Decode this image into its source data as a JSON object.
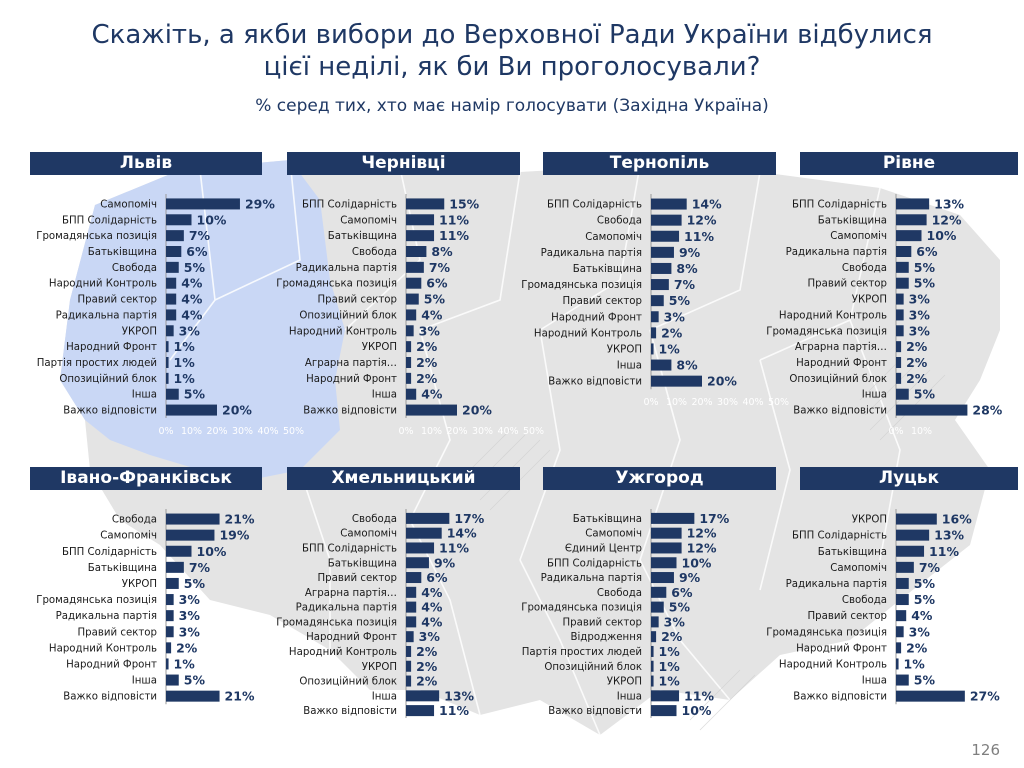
{
  "title_line1": "Скажіть, а якби вибори до Верховної Ради України відбулися",
  "title_line2": "цієї неділі, як би Ви проголосували?",
  "subtitle": "% серед тих, хто має намір голосувати (Західна Україна)",
  "page_number": "126",
  "colors": {
    "bar": "#1f3864",
    "header_bg": "#1f3864",
    "region_highlight": "#c9d7f5",
    "map": "#e4e4e4"
  },
  "chart_data": [
    {
      "type": "bar",
      "orientation": "horizontal",
      "title": "Львів",
      "categories": [
        "Самопоміч",
        "БПП Солідарність",
        "Громадянська позиція",
        "Батьківщина",
        "Свобода",
        "Народний Контроль",
        "Правий сектор",
        "Радикальна партія",
        "УКРОП",
        "Народний Фронт",
        "Партія простих людей",
        "Опозиційний блок",
        "Інша",
        "Важко відповісти"
      ],
      "values": [
        29,
        10,
        7,
        6,
        5,
        4,
        4,
        4,
        3,
        1,
        1,
        1,
        5,
        20
      ],
      "xlim": [
        0,
        50
      ],
      "xticks": [
        "0%",
        "10%",
        "20%",
        "30%",
        "40%",
        "50%"
      ]
    },
    {
      "type": "bar",
      "orientation": "horizontal",
      "title": "Чернівці",
      "categories": [
        "БПП Солідарність",
        "Самопоміч",
        "Батьківщина",
        "Свобода",
        "Радикальна партія",
        "Громадянська позиція",
        "Правий сектор",
        "Опозиційний блок",
        "Народний Контроль",
        "УКРОП",
        "Аграрна партія…",
        "Народний Фронт",
        "Інша",
        "Важко відповісти"
      ],
      "values": [
        15,
        11,
        11,
        8,
        7,
        6,
        5,
        4,
        3,
        2,
        2,
        2,
        4,
        20
      ],
      "xlim": [
        0,
        50
      ],
      "xticks": [
        "0%",
        "10%",
        "20%",
        "30%",
        "40%",
        "50%"
      ]
    },
    {
      "type": "bar",
      "orientation": "horizontal",
      "title": "Тернопіль",
      "categories": [
        "БПП Солідарність",
        "Свобода",
        "Самопоміч",
        "Радикальна партія",
        "Батьківщина",
        "Громадянська позиція",
        "Правий сектор",
        "Народний Фронт",
        "Народний Контроль",
        "УКРОП",
        "Інша",
        "Важко відповісти"
      ],
      "values": [
        14,
        12,
        11,
        9,
        8,
        7,
        5,
        3,
        2,
        1,
        8,
        20
      ],
      "xlim": [
        0,
        50
      ],
      "xticks": [
        "0%",
        "10%",
        "20%",
        "30%",
        "40%",
        "50%"
      ]
    },
    {
      "type": "bar",
      "orientation": "horizontal",
      "title": "Рівне",
      "categories": [
        "БПП Солідарність",
        "Батьківщина",
        "Самопоміч",
        "Радикальна партія",
        "Свобода",
        "Правий сектор",
        "УКРОП",
        "Народний Контроль",
        "Громадянська позиція",
        "Аграрна партія…",
        "Народний Фронт",
        "Опозиційний блок",
        "Інша",
        "Важко відповісти"
      ],
      "values": [
        13,
        12,
        10,
        6,
        5,
        5,
        3,
        3,
        3,
        2,
        2,
        2,
        5,
        28
      ],
      "xlim": [
        0,
        50
      ],
      "xticks": [
        "0%",
        "10%"
      ]
    },
    {
      "type": "bar",
      "orientation": "horizontal",
      "title": "Івано-Франківськ",
      "categories": [
        "Свобода",
        "Самопоміч",
        "БПП Солідарність",
        "Батьківщина",
        "УКРОП",
        "Громадянська позиція",
        "Радикальна партія",
        "Правий сектор",
        "Народний Контроль",
        "Народний Фронт",
        "Інша",
        "Важко відповісти"
      ],
      "values": [
        21,
        19,
        10,
        7,
        5,
        3,
        3,
        3,
        2,
        1,
        5,
        21
      ],
      "xlim": [
        0,
        50
      ],
      "xticks": []
    },
    {
      "type": "bar",
      "orientation": "horizontal",
      "title": "Хмельницький",
      "categories": [
        "Свобода",
        "Самопоміч",
        "БПП Солідарність",
        "Батьківщина",
        "Правий сектор",
        "Аграрна партія…",
        "Радикальна партія",
        "Громадянська позиція",
        "Народний Фронт",
        "Народний Контроль",
        "УКРОП",
        "Опозиційний блок",
        "Інша",
        "Важко відповісти"
      ],
      "values": [
        17,
        14,
        11,
        9,
        6,
        4,
        4,
        4,
        3,
        2,
        2,
        2,
        13,
        11
      ],
      "xlim": [
        0,
        50
      ],
      "xticks": []
    },
    {
      "type": "bar",
      "orientation": "horizontal",
      "title": "Ужгород",
      "categories": [
        "Батьківщина",
        "Самопоміч",
        "Єдиний Центр",
        "БПП Солідарність",
        "Радикальна партія",
        "Свобода",
        "Громадянська позиція",
        "Правий сектор",
        "Відродження",
        "Партія простих людей",
        "Опозиційний блок",
        "УКРОП",
        "Інша",
        "Важко відповісти"
      ],
      "values": [
        17,
        12,
        12,
        10,
        9,
        6,
        5,
        3,
        2,
        1,
        1,
        1,
        11,
        10
      ],
      "xlim": [
        0,
        50
      ],
      "xticks": []
    },
    {
      "type": "bar",
      "orientation": "horizontal",
      "title": "Луцьк",
      "categories": [
        "УКРОП",
        "БПП Солідарність",
        "Батьківщина",
        "Самопоміч",
        "Радикальна партія",
        "Свобода",
        "Правий сектор",
        "Громадянська позиція",
        "Народний Фронт",
        "Народний Контроль",
        "Інша",
        "Важко відповісти"
      ],
      "values": [
        16,
        13,
        11,
        7,
        5,
        5,
        4,
        3,
        2,
        1,
        5,
        27
      ],
      "xlim": [
        0,
        50
      ],
      "xticks": []
    }
  ]
}
